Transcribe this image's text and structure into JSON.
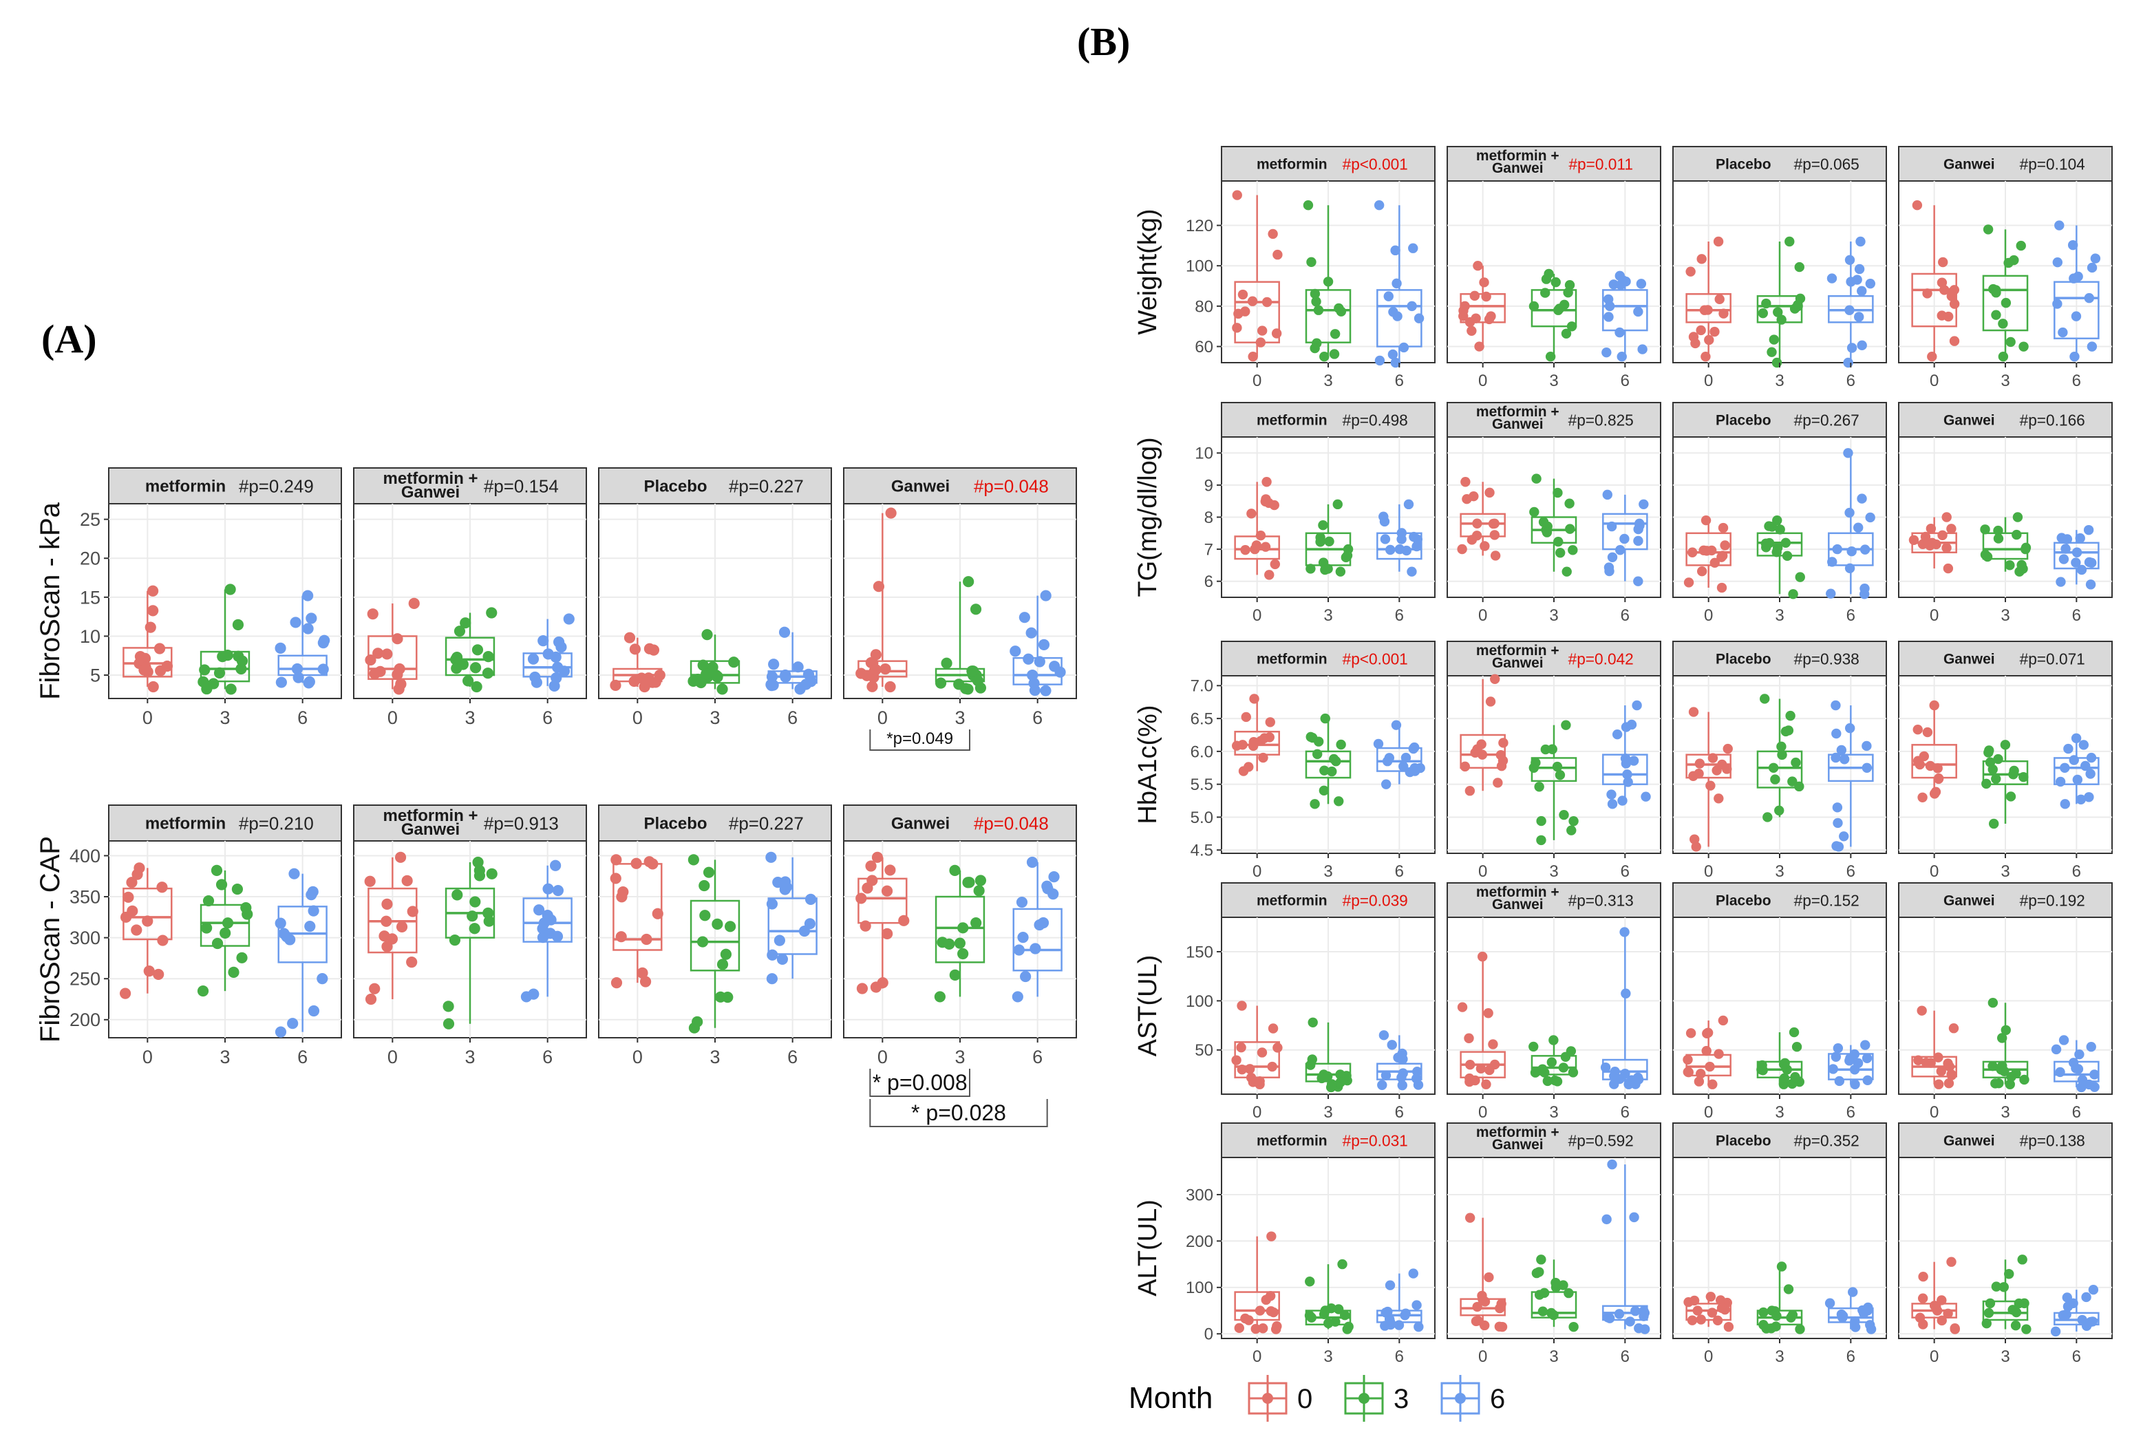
{
  "figure": {
    "panel_labels": {
      "A": "(A)",
      "B": "(B)"
    },
    "groups": [
      "metformin",
      "metformin +\nGanwei",
      "Placebo",
      "Ganwei"
    ],
    "months": [
      "0",
      "3",
      "6"
    ],
    "colors": {
      "m0": "#e2716a",
      "m3": "#45ad45",
      "m6": "#6c9ced",
      "sig": "#e3120b",
      "strip": "#d9d9d9",
      "grid": "#ebebeb"
    },
    "legend": {
      "title": "Month",
      "labels": [
        "0",
        "3",
        "6"
      ]
    }
  },
  "chart_data": [
    {
      "id": "A1",
      "type": "box",
      "ylabel": "FibroScan - kPa",
      "ylim": [
        2,
        27
      ],
      "yticks": [
        5,
        10,
        15,
        20,
        25
      ],
      "annotations": [
        {
          "panel": 3,
          "from": 0,
          "to": 1,
          "text": "*p=0.049"
        }
      ],
      "panels": [
        {
          "group": 0,
          "p": "#p=0.249",
          "sig": false,
          "boxes": [
            [
              3.5,
              4.8,
              6.5,
              8.5,
              15.8
            ],
            [
              3.2,
              4.2,
              5.8,
              8,
              16
            ],
            [
              4,
              5,
              5.8,
              7.5,
              15.2
            ]
          ]
        },
        {
          "group": 1,
          "p": "#p=0.154",
          "sig": false,
          "boxes": [
            [
              3.2,
              4.5,
              5.8,
              10,
              14.2
            ],
            [
              3.5,
              5,
              7,
              9.8,
              13
            ],
            [
              3.6,
              4.8,
              6,
              7.8,
              12.2
            ]
          ]
        },
        {
          "group": 2,
          "p": "#p=0.227",
          "sig": false,
          "boxes": [
            [
              3.5,
              4.2,
              5,
              5.8,
              9.8
            ],
            [
              3.2,
              4,
              5,
              6.8,
              10.2
            ],
            [
              3.2,
              4,
              4.8,
              5.5,
              10.5
            ]
          ]
        },
        {
          "group": 3,
          "p": "#p=0.048",
          "sig": true,
          "boxes": [
            [
              3.5,
              4.8,
              5.5,
              6.8,
              25.8
            ],
            [
              3.2,
              4.2,
              5,
              5.8,
              17
            ],
            [
              3,
              3.8,
              5,
              7.2,
              15.2
            ]
          ]
        }
      ]
    },
    {
      "id": "A2",
      "type": "box",
      "ylabel": "FibroScan - CAP",
      "ylim": [
        178,
        418
      ],
      "yticks": [
        200,
        250,
        300,
        350,
        400
      ],
      "annotations": [
        {
          "panel": 3,
          "from": 0,
          "to": 1,
          "text": "* p=0.008"
        },
        {
          "panel": 3,
          "from": 0,
          "to": 2,
          "text": "* p=0.028"
        }
      ],
      "panels": [
        {
          "group": 0,
          "p": "#p=0.210",
          "sig": false,
          "boxes": [
            [
              232,
              298,
              325,
              360,
              385
            ],
            [
              235,
              290,
              318,
              340,
              382
            ],
            [
              185,
              270,
              305,
              338,
              378
            ]
          ]
        },
        {
          "group": 1,
          "p": "#p=0.913",
          "sig": false,
          "boxes": [
            [
              225,
              282,
              320,
              360,
              398
            ],
            [
              195,
              300,
              330,
              360,
              392
            ],
            [
              228,
              295,
              318,
              348,
              388
            ]
          ]
        },
        {
          "group": 2,
          "p": "#p=0.227",
          "sig": false,
          "boxes": [
            [
              245,
              285,
              298,
              390,
              395
            ],
            [
              190,
              260,
              295,
              345,
              395
            ],
            [
              250,
              280,
              308,
              348,
              398
            ]
          ]
        },
        {
          "group": 3,
          "p": "#p=0.048",
          "sig": true,
          "boxes": [
            [
              238,
              318,
              348,
              372,
              398
            ],
            [
              228,
              270,
              312,
              350,
              382
            ],
            [
              228,
              260,
              285,
              335,
              392
            ]
          ]
        }
      ]
    },
    {
      "id": "B1",
      "type": "box",
      "ylabel": "Weight(kg)",
      "ylim": [
        52,
        142
      ],
      "yticks": [
        60,
        80,
        100,
        120
      ],
      "panels": [
        {
          "group": 0,
          "p": "#p<0.001",
          "sig": true,
          "boxes": [
            [
              55,
              62,
              82,
              92,
              135
            ],
            [
              55,
              62,
              78,
              88,
              130
            ],
            [
              52,
              60,
              80,
              88,
              130
            ]
          ]
        },
        {
          "group": 1,
          "p": "#p=0.011",
          "sig": true,
          "boxes": [
            [
              60,
              72,
              80,
              86,
              100
            ],
            [
              55,
              70,
              78,
              88,
              96
            ],
            [
              55,
              68,
              80,
              88,
              95
            ]
          ]
        },
        {
          "group": 2,
          "p": "#p=0.065",
          "sig": false,
          "boxes": [
            [
              55,
              72,
              78,
              86,
              112
            ],
            [
              52,
              72,
              80,
              85,
              112
            ],
            [
              52,
              72,
              78,
              85,
              112
            ]
          ]
        },
        {
          "group": 3,
          "p": "#p=0.104",
          "sig": false,
          "boxes": [
            [
              55,
              70,
              88,
              96,
              130
            ],
            [
              55,
              68,
              88,
              95,
              118
            ],
            [
              55,
              64,
              84,
              92,
              120
            ]
          ]
        }
      ]
    },
    {
      "id": "B2",
      "type": "box",
      "ylabel": "TG(mg/dl/log)",
      "ylim": [
        5.5,
        10.5
      ],
      "yticks": [
        6,
        7,
        8,
        9,
        10
      ],
      "panels": [
        {
          "group": 0,
          "p": "#p=0.498",
          "sig": false,
          "boxes": [
            [
              6.2,
              6.7,
              7,
              7.4,
              9.1
            ],
            [
              6.3,
              6.5,
              7,
              7.5,
              8.4
            ],
            [
              6.3,
              6.7,
              7,
              7.5,
              8.4
            ]
          ]
        },
        {
          "group": 1,
          "p": "#p=0.825",
          "sig": false,
          "boxes": [
            [
              6.8,
              7.4,
              7.8,
              8.1,
              9.1
            ],
            [
              6.3,
              7.2,
              7.6,
              8,
              9.2
            ],
            [
              6,
              7,
              7.8,
              8.1,
              8.7
            ]
          ]
        },
        {
          "group": 2,
          "p": "#p=0.267",
          "sig": false,
          "boxes": [
            [
              5.8,
              6.5,
              6.9,
              7.5,
              7.9
            ],
            [
              5.6,
              6.8,
              7.2,
              7.5,
              7.9
            ],
            [
              5.6,
              6.5,
              7,
              7.5,
              10
            ]
          ]
        },
        {
          "group": 3,
          "p": "#p=0.166",
          "sig": false,
          "boxes": [
            [
              6.4,
              6.9,
              7.2,
              7.5,
              8
            ],
            [
              6.3,
              6.7,
              7,
              7.5,
              8
            ],
            [
              5.9,
              6.4,
              6.9,
              7.2,
              7.6
            ]
          ]
        }
      ]
    },
    {
      "id": "B3",
      "type": "box",
      "ylabel": "HbA1c(%)",
      "ylim": [
        4.45,
        7.15
      ],
      "yticks": [
        4.5,
        5.0,
        5.5,
        6.0,
        6.5,
        7.0
      ],
      "panels": [
        {
          "group": 0,
          "p": "#p<0.001",
          "sig": true,
          "boxes": [
            [
              5.7,
              5.95,
              6.1,
              6.3,
              6.8
            ],
            [
              5.2,
              5.6,
              5.85,
              6,
              6.5
            ],
            [
              5.5,
              5.7,
              5.85,
              6.05,
              6.4
            ]
          ]
        },
        {
          "group": 1,
          "p": "#p=0.042",
          "sig": true,
          "boxes": [
            [
              5.4,
              5.75,
              5.95,
              6.25,
              7.1
            ],
            [
              4.65,
              5.55,
              5.75,
              5.9,
              6.4
            ],
            [
              5.2,
              5.5,
              5.65,
              5.95,
              6.7
            ]
          ]
        },
        {
          "group": 2,
          "p": "#p=0.938",
          "sig": false,
          "boxes": [
            [
              4.55,
              5.6,
              5.8,
              5.95,
              6.6
            ],
            [
              5,
              5.45,
              5.75,
              6,
              6.8
            ],
            [
              4.55,
              5.55,
              5.75,
              5.95,
              6.7
            ]
          ]
        },
        {
          "group": 3,
          "p": "#p=0.071",
          "sig": false,
          "boxes": [
            [
              5.3,
              5.6,
              5.8,
              6.1,
              6.7
            ],
            [
              4.9,
              5.5,
              5.65,
              5.85,
              6.1
            ],
            [
              5.2,
              5.5,
              5.75,
              5.9,
              6.2
            ]
          ]
        }
      ]
    },
    {
      "id": "B4",
      "type": "box",
      "ylabel": "AST(UL)",
      "ylim": [
        5,
        185
      ],
      "yticks": [
        50,
        100,
        150
      ],
      "panels": [
        {
          "group": 0,
          "p": "#p=0.039",
          "sig": true,
          "boxes": [
            [
              15,
              22,
              33,
              58,
              95
            ],
            [
              12,
              18,
              25,
              36,
              78
            ],
            [
              14,
              20,
              28,
              36,
              65
            ]
          ]
        },
        {
          "group": 1,
          "p": "#p=0.313",
          "sig": false,
          "boxes": [
            [
              15,
              22,
              35,
              48,
              145
            ],
            [
              18,
              25,
              32,
              44,
              60
            ],
            [
              15,
              20,
              28,
              40,
              170
            ]
          ]
        },
        {
          "group": 2,
          "p": "#p=0.152",
          "sig": false,
          "boxes": [
            [
              15,
              24,
              33,
              45,
              80
            ],
            [
              15,
              22,
              30,
              38,
              68
            ],
            [
              15,
              20,
              30,
              46,
              55
            ]
          ]
        },
        {
          "group": 3,
          "p": "#p=0.192",
          "sig": false,
          "boxes": [
            [
              15,
              23,
              33,
              43,
              90
            ],
            [
              15,
              22,
              30,
              38,
              98
            ],
            [
              12,
              18,
              25,
              38,
              60
            ]
          ]
        }
      ]
    },
    {
      "id": "B5",
      "type": "box",
      "ylabel": "ALT(UL)",
      "ylim": [
        -10,
        380
      ],
      "yticks": [
        0,
        100,
        200,
        300
      ],
      "panels": [
        {
          "group": 0,
          "p": "#p=0.031",
          "sig": true,
          "boxes": [
            [
              10,
              30,
              50,
              90,
              210
            ],
            [
              10,
              20,
              35,
              50,
              150
            ],
            [
              15,
              25,
              40,
              50,
              130
            ]
          ]
        },
        {
          "group": 1,
          "p": "#p=0.592",
          "sig": false,
          "boxes": [
            [
              15,
              40,
              55,
              75,
              250
            ],
            [
              15,
              35,
              45,
              90,
              160
            ],
            [
              10,
              30,
              45,
              60,
              365
            ]
          ]
        },
        {
          "group": 2,
          "p": "#p=0.352",
          "sig": false,
          "boxes": [
            [
              15,
              30,
              50,
              65,
              80
            ],
            [
              10,
              20,
              35,
              50,
              145
            ],
            [
              10,
              25,
              35,
              55,
              90
            ]
          ]
        },
        {
          "group": 3,
          "p": "#p=0.138",
          "sig": false,
          "boxes": [
            [
              10,
              35,
              50,
              65,
              155
            ],
            [
              10,
              30,
              45,
              70,
              160
            ],
            [
              5,
              20,
              30,
              45,
              95
            ]
          ]
        }
      ]
    }
  ]
}
